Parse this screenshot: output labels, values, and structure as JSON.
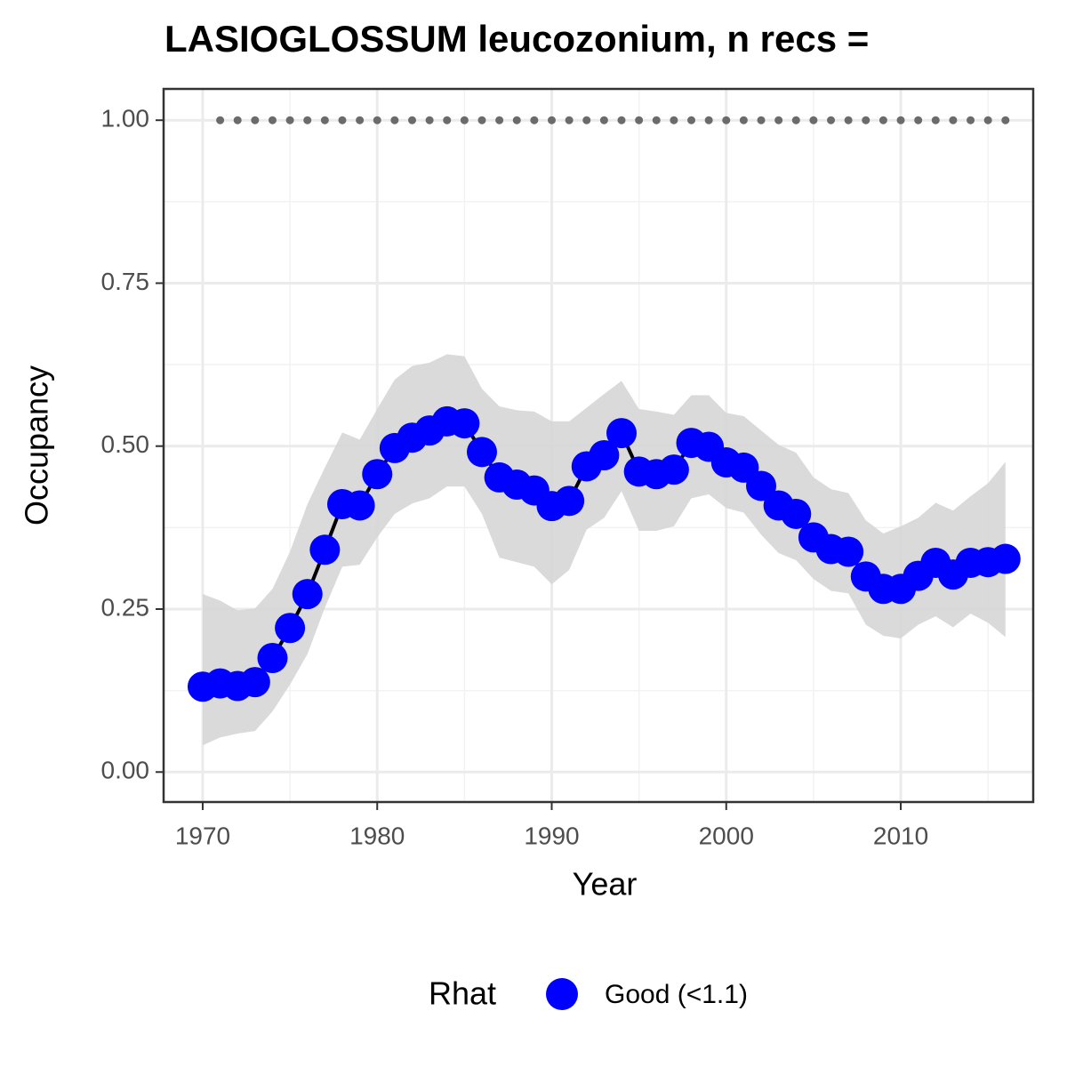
{
  "chart_data": {
    "type": "line",
    "title": "LASIOGLOSSUM leucozonium, n recs =",
    "x_label": "Year",
    "y_label": "Occupancy",
    "legend_title": "Rhat",
    "legend_position": "bottom",
    "grid": true,
    "x": [
      1970,
      1971,
      1972,
      1973,
      1974,
      1975,
      1976,
      1977,
      1978,
      1979,
      1980,
      1981,
      1982,
      1983,
      1984,
      1985,
      1986,
      1987,
      1988,
      1989,
      1990,
      1991,
      1992,
      1993,
      1994,
      1995,
      1996,
      1997,
      1998,
      1999,
      2000,
      2001,
      2002,
      2003,
      2004,
      2005,
      2006,
      2007,
      2008,
      2009,
      2010,
      2011,
      2012,
      2013,
      2014,
      2015,
      2016
    ],
    "series": [
      {
        "name": "Good (<1.1)",
        "color": "#0000ff",
        "line_color": "#000000",
        "band_color": "#d6d6d6",
        "values": [
          0.131,
          0.136,
          0.132,
          0.138,
          0.175,
          0.221,
          0.273,
          0.341,
          0.411,
          0.409,
          0.457,
          0.497,
          0.513,
          0.524,
          0.538,
          0.535,
          0.491,
          0.452,
          0.441,
          0.432,
          0.408,
          0.416,
          0.469,
          0.486,
          0.52,
          0.461,
          0.457,
          0.464,
          0.505,
          0.499,
          0.475,
          0.467,
          0.439,
          0.409,
          0.396,
          0.36,
          0.342,
          0.338,
          0.3,
          0.281,
          0.281,
          0.301,
          0.321,
          0.303,
          0.321,
          0.322,
          0.327
        ],
        "upper": [
          0.273,
          0.263,
          0.248,
          0.251,
          0.281,
          0.338,
          0.411,
          0.467,
          0.521,
          0.51,
          0.557,
          0.602,
          0.623,
          0.628,
          0.641,
          0.638,
          0.588,
          0.561,
          0.555,
          0.553,
          0.538,
          0.538,
          0.559,
          0.58,
          0.6,
          0.557,
          0.553,
          0.548,
          0.578,
          0.578,
          0.551,
          0.546,
          0.524,
          0.502,
          0.49,
          0.452,
          0.434,
          0.428,
          0.386,
          0.366,
          0.377,
          0.39,
          0.413,
          0.401,
          0.423,
          0.443,
          0.476
        ],
        "lower": [
          0.041,
          0.053,
          0.059,
          0.063,
          0.093,
          0.134,
          0.181,
          0.252,
          0.315,
          0.318,
          0.36,
          0.396,
          0.412,
          0.42,
          0.438,
          0.438,
          0.396,
          0.329,
          0.322,
          0.315,
          0.288,
          0.31,
          0.372,
          0.39,
          0.431,
          0.37,
          0.37,
          0.377,
          0.42,
          0.426,
          0.405,
          0.398,
          0.364,
          0.336,
          0.325,
          0.296,
          0.278,
          0.274,
          0.226,
          0.209,
          0.205,
          0.226,
          0.239,
          0.222,
          0.243,
          0.229,
          0.207
        ]
      }
    ],
    "reference": {
      "color": "#6b6b6b",
      "values": [
        null,
        1,
        1,
        1,
        1,
        1,
        1,
        1,
        1,
        1,
        1,
        1,
        1,
        1,
        1,
        1,
        1,
        1,
        1,
        1,
        1,
        1,
        1,
        1,
        1,
        1,
        1,
        1,
        1,
        1,
        1,
        1,
        1,
        1,
        1,
        1,
        1,
        1,
        1,
        1,
        1,
        1,
        1,
        1,
        1,
        1,
        1
      ]
    },
    "xlim": [
      1967.76,
      2017.59
    ],
    "ylim": [
      -0.046,
      1.048
    ],
    "xticks": [
      1970,
      1980,
      1990,
      2000,
      2010
    ],
    "yticks": [
      {
        "value": 0,
        "label": "0.00"
      },
      {
        "value": 0.25,
        "label": "0.25"
      },
      {
        "value": 0.5,
        "label": "0.50"
      },
      {
        "value": 0.75,
        "label": "0.75"
      },
      {
        "value": 1,
        "label": "1.00"
      }
    ]
  }
}
